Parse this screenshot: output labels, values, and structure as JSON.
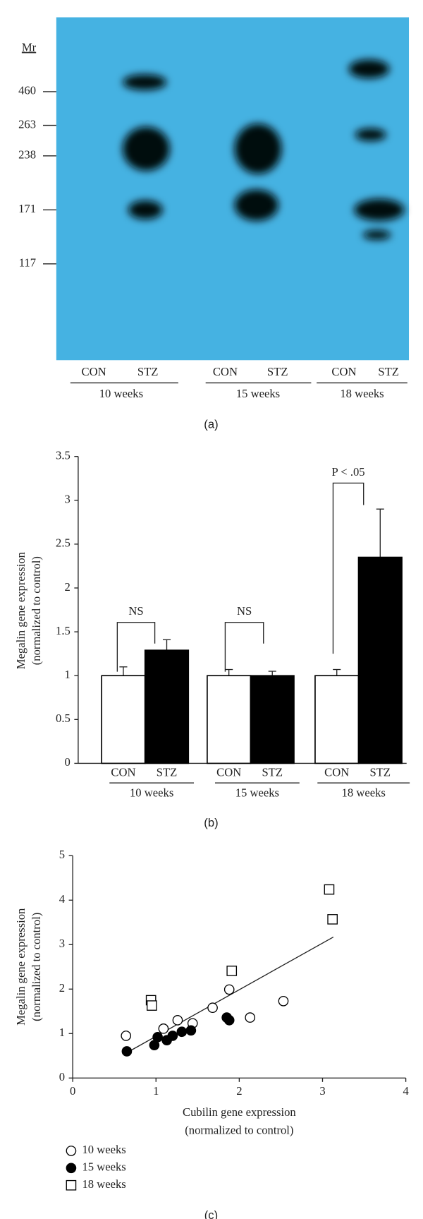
{
  "blot": {
    "mr_label": "Mr",
    "markers": [
      "460",
      "263",
      "238",
      "171",
      "117"
    ],
    "lanes": [
      "CON",
      "STZ",
      "CON",
      "STZ",
      "CON",
      "STZ"
    ],
    "groups": [
      "10 weeks",
      "15 weeks",
      "18 weeks"
    ],
    "panel_label": "(a)"
  },
  "chart_data": [
    {
      "type": "bar",
      "panel_label": "(b)",
      "ylabel": [
        "Megalin gene expression",
        "(normalized to control)"
      ],
      "categories": [
        "10 weeks",
        "15 weeks",
        "18 weeks"
      ],
      "series": [
        {
          "name": "CON",
          "color": "#ffffff",
          "values": [
            1,
            1,
            1
          ],
          "errors": [
            0.1,
            0.07,
            0.07
          ]
        },
        {
          "name": "STZ",
          "color": "#000000",
          "values": [
            1.29,
            1.0,
            2.35
          ],
          "errors": [
            0.12,
            0.05,
            0.55
          ]
        }
      ],
      "annotations": [
        "NS",
        "NS",
        "P < .05"
      ],
      "ylim": [
        0,
        3.5
      ],
      "yticks": [
        0,
        0.5,
        1,
        1.5,
        2,
        2.5,
        3,
        3.5
      ]
    },
    {
      "type": "scatter",
      "panel_label": "(c)",
      "xlabel": [
        "Cubilin gene expression",
        "(normalized to control)"
      ],
      "ylabel": [
        "Megalin gene expression",
        "(normalized to control)"
      ],
      "series": [
        {
          "name": "10 weeks",
          "marker": "circle-open",
          "x": [
            0.64,
            1.09,
            1.26,
            1.44,
            1.68,
            1.88,
            2.13,
            2.53
          ],
          "values": [
            0.95,
            1.11,
            1.3,
            1.23,
            1.58,
            1.99,
            1.36,
            1.73
          ]
        },
        {
          "name": "15 weeks",
          "marker": "circle-filled",
          "x": [
            0.65,
            0.98,
            1.02,
            1.13,
            1.2,
            1.31,
            1.42,
            1.85,
            1.88
          ],
          "values": [
            0.6,
            0.74,
            0.92,
            0.85,
            0.95,
            1.04,
            1.07,
            1.36,
            1.3
          ]
        },
        {
          "name": "18 weeks",
          "marker": "square-open",
          "x": [
            0.94,
            0.95,
            1.91,
            3.08,
            3.12
          ],
          "values": [
            1.75,
            1.63,
            2.41,
            4.24,
            3.57
          ]
        }
      ],
      "trend_line": {
        "x": [
          0.64,
          3.13
        ],
        "values": [
          0.56,
          3.17
        ]
      },
      "xlim": [
        0,
        4
      ],
      "xticks": [
        0,
        1,
        2,
        3,
        4
      ],
      "ylim": [
        0,
        5
      ],
      "yticks": [
        0,
        1,
        2,
        3,
        4,
        5
      ]
    }
  ]
}
